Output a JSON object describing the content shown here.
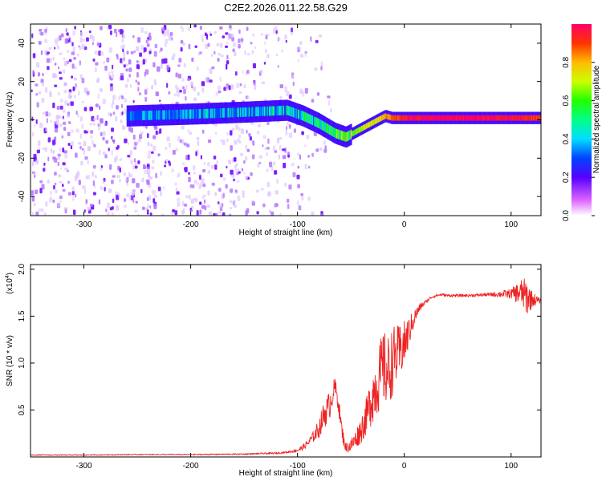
{
  "title": "C2E2.2026.011.22.58.G29",
  "chart_data": [
    {
      "type": "heatmap",
      "name": "spectrogram",
      "xlabel": "Height of straight line (km)",
      "ylabel": "Frequency (Hz)",
      "xlim": [
        -350,
        128
      ],
      "ylim": [
        -50,
        50
      ],
      "xticks": [
        -300,
        -200,
        -100,
        0,
        100
      ],
      "yticks": [
        -40,
        -20,
        0,
        20,
        40
      ],
      "colorbar": {
        "label": "Normalized spectral amplitude",
        "range": [
          0,
          1
        ],
        "ticks": [
          0.0,
          0.2,
          0.4,
          0.6,
          0.8
        ],
        "tick_labels": [
          "0.0",
          "0.2",
          "0.4",
          "0.6",
          "0.8"
        ]
      },
      "ridge": {
        "x": [
          -260,
          -200,
          -150,
          -110,
          -95,
          -80,
          -65,
          -55,
          -45,
          -35,
          -25,
          -18,
          -12,
          -5,
          0,
          20,
          60,
          100,
          128
        ],
        "freq": [
          2,
          3,
          4,
          5,
          2,
          -2,
          -7,
          -9,
          -6,
          -3,
          0,
          2,
          1,
          1,
          1,
          1,
          1,
          1,
          1
        ],
        "amplitude": [
          0.3,
          0.32,
          0.35,
          0.4,
          0.45,
          0.5,
          0.55,
          0.6,
          0.65,
          0.7,
          0.75,
          0.8,
          0.85,
          0.9,
          0.95,
          1,
          1,
          0.95,
          0.9
        ]
      },
      "noise_region_x": [
        -350,
        -100
      ],
      "noise_region_freq": [
        -50,
        50
      ]
    },
    {
      "type": "line",
      "name": "snr",
      "xlabel": "Height of straight line (km)",
      "ylabel": "SNR (10 * v/v)",
      "multiplier": "(x10^4)",
      "multiplier_base": "(x10",
      "multiplier_exp": "4",
      "multiplier_close": ")",
      "xlim": [
        -350,
        128
      ],
      "ylim": [
        0,
        2.05
      ],
      "xticks": [
        -300,
        -200,
        -100,
        0,
        100
      ],
      "yticks": [
        0.5,
        1.0,
        1.5,
        2.0
      ],
      "ytick_labels": [
        "0.5",
        "1.0",
        "1.5",
        "2.0"
      ],
      "color": "#ee2222",
      "x": [
        -350,
        -300,
        -250,
        -200,
        -150,
        -120,
        -110,
        -100,
        -95,
        -90,
        -85,
        -80,
        -75,
        -70,
        -65,
        -62,
        -58,
        -55,
        -50,
        -45,
        -40,
        -35,
        -30,
        -25,
        -20,
        -15,
        -10,
        -5,
        0,
        5,
        10,
        15,
        20,
        25,
        30,
        35,
        40,
        60,
        80,
        100,
        110,
        115,
        120,
        128
      ],
      "y": [
        0.02,
        0.02,
        0.025,
        0.025,
        0.03,
        0.04,
        0.05,
        0.07,
        0.1,
        0.15,
        0.22,
        0.3,
        0.45,
        0.55,
        0.75,
        0.6,
        0.25,
        0.1,
        0.12,
        0.2,
        0.3,
        0.45,
        0.65,
        0.8,
        0.95,
        0.9,
        1.05,
        1.1,
        1.2,
        1.35,
        1.5,
        1.6,
        1.65,
        1.7,
        1.72,
        1.73,
        1.72,
        1.72,
        1.73,
        1.74,
        1.75,
        1.7,
        1.68,
        1.66
      ],
      "noise_amplitude": [
        0.005,
        0.005,
        0.005,
        0.005,
        0.008,
        0.01,
        0.01,
        0.02,
        0.03,
        0.04,
        0.06,
        0.1,
        0.15,
        0.15,
        0.1,
        0.1,
        0.08,
        0.05,
        0.08,
        0.1,
        0.15,
        0.2,
        0.3,
        0.35,
        0.4,
        0.4,
        0.35,
        0.3,
        0.25,
        0.15,
        0.08,
        0.04,
        0.02,
        0.015,
        0.015,
        0.015,
        0.015,
        0.015,
        0.02,
        0.05,
        0.15,
        0.2,
        0.08,
        0.02
      ]
    }
  ]
}
